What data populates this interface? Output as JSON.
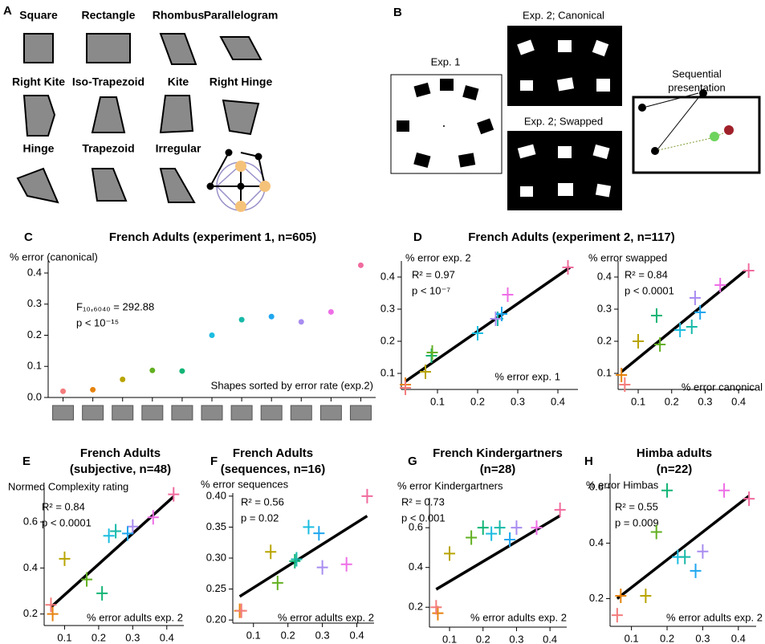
{
  "panel_a": {
    "label": "A",
    "shapes": [
      {
        "name": "Square",
        "color": "#e6830e"
      },
      {
        "name": "Rectangle",
        "color": "#f47c7c"
      },
      {
        "name": "Rhombus",
        "color": "#14b576"
      },
      {
        "name": "Parallelogram",
        "color": "#62b021"
      },
      {
        "name": "Right Kite",
        "color": "#1bbde0"
      },
      {
        "name": "Iso-Trapezoid",
        "color": "#b8a400"
      },
      {
        "name": "Kite",
        "color": "#17b9a8"
      },
      {
        "name": "Right Hinge",
        "color": "#a88cf0"
      },
      {
        "name": "Hinge",
        "color": "#1fa6ef"
      },
      {
        "name": "Trapezoid",
        "color": "#ee6ee6"
      },
      {
        "name": "Irregular",
        "color": "#f06b9e"
      }
    ]
  },
  "panel_b": {
    "label": "B",
    "exp1": "Exp. 1",
    "exp2_canonical": "Exp. 2; Canonical",
    "exp2_swapped": "Exp. 2; Swapped",
    "sequential": [
      "Sequential",
      "presentation"
    ]
  },
  "chart_data": [
    {
      "type": "dot",
      "label": "C",
      "title": [
        "French Adults (experiment 1, n=605)"
      ],
      "ylabel": "% error (canonical)",
      "xlabel": "Shapes sorted by error rate (exp.2)",
      "annotation": [
        "F₁₀,₆₀₄₀ = 292.88",
        "p < 10⁻¹⁵"
      ],
      "categories": [
        null,
        null,
        null,
        null,
        null,
        null,
        null,
        null,
        null,
        null,
        null
      ],
      "values": [
        0.02,
        0.025,
        0.058,
        0.087,
        0.085,
        0.2,
        0.25,
        0.26,
        0.243,
        0.275,
        0.425
      ],
      "colors": [
        "#f47c7c",
        "#e6830e",
        "#b8a400",
        "#62b021",
        "#14b576",
        "#1bbde0",
        "#17b9a8",
        "#1fa6ef",
        "#a88cf0",
        "#ee6ee6",
        "#f06b9e"
      ],
      "ylim": [
        0,
        0.44
      ],
      "yticks": [
        {
          "value": 0,
          "label": "0.0"
        },
        0.1,
        0.2,
        0.3,
        0.4
      ]
    },
    {
      "type": "scatter",
      "label": "D",
      "title": [
        "French Adults (experiment 2, n=117)"
      ],
      "ylabel": "% error exp. 2",
      "xlabel": "% error exp. 1",
      "annotation": [
        "R² = 0.97",
        "p < 10⁻⁷"
      ],
      "x": [
        0.02,
        0.02,
        0.085,
        0.087,
        0.2,
        0.07,
        0.25,
        0.245,
        0.26,
        0.275,
        0.425
      ],
      "y": [
        0.065,
        0.055,
        0.155,
        0.165,
        0.225,
        0.105,
        0.27,
        0.27,
        0.285,
        0.345,
        0.43
      ],
      "colors": [
        "#e6830e",
        "#f47c7c",
        "#14b576",
        "#62b021",
        "#1bbde0",
        "#b8a400",
        "#17b9a8",
        "#a88cf0",
        "#1fa6ef",
        "#ee6ee6",
        "#f06b9e"
      ],
      "fit": {
        "x": [
          0.02,
          0.43
        ],
        "y": [
          0.075,
          0.43
        ]
      },
      "xlim": [
        0.01,
        0.45
      ],
      "ylim": [
        0.05,
        0.45
      ],
      "xticks": [
        0.1,
        0.2,
        0.3,
        0.4
      ],
      "yticks": [
        0.1,
        0.2,
        0.3,
        0.4
      ]
    },
    {
      "type": "scatter",
      "ylabel": "% error swapped",
      "xlabel": "% error canonical",
      "annotation": [
        "R² = 0.84",
        "p < 0.0001"
      ],
      "x": [
        0.05,
        0.06,
        0.155,
        0.165,
        0.225,
        0.1,
        0.26,
        0.27,
        0.285,
        0.345,
        0.43
      ],
      "y": [
        0.095,
        0.065,
        0.28,
        0.19,
        0.235,
        0.2,
        0.245,
        0.335,
        0.29,
        0.375,
        0.42
      ],
      "colors": [
        "#e6830e",
        "#f47c7c",
        "#14b576",
        "#62b021",
        "#1bbde0",
        "#b8a400",
        "#17b9a8",
        "#a88cf0",
        "#1fa6ef",
        "#ee6ee6",
        "#f06b9e"
      ],
      "fit": {
        "x": [
          0.05,
          0.42
        ],
        "y": [
          0.105,
          0.42
        ]
      },
      "xlim": [
        0.04,
        0.45
      ],
      "ylim": [
        0.05,
        0.45
      ],
      "xticks": [
        0.1,
        0.2,
        0.3,
        0.4
      ],
      "yticks": [
        0.1,
        0.2,
        0.3,
        0.4
      ]
    },
    {
      "type": "scatter",
      "label": "E",
      "title": [
        "French Adults",
        "(subjective, n=48)"
      ],
      "ylabel": "Normed Complexity rating",
      "xlabel": "% error adults exp. 2",
      "annotation": [
        "R² = 0.84",
        "p < 0.0001"
      ],
      "x": [
        0.065,
        0.06,
        0.21,
        0.165,
        0.23,
        0.1,
        0.25,
        0.3,
        0.285,
        0.36,
        0.42
      ],
      "y": [
        0.2,
        0.24,
        0.29,
        0.35,
        0.54,
        0.44,
        0.56,
        0.58,
        0.55,
        0.62,
        0.72
      ],
      "colors": [
        "#e6830e",
        "#f47c7c",
        "#14b576",
        "#62b021",
        "#1bbde0",
        "#b8a400",
        "#17b9a8",
        "#a88cf0",
        "#1fa6ef",
        "#ee6ee6",
        "#f06b9e"
      ],
      "fit": {
        "x": [
          0.06,
          0.42
        ],
        "y": [
          0.23,
          0.71
        ]
      },
      "xlim": [
        0.04,
        0.45
      ],
      "ylim": [
        0.15,
        0.75
      ],
      "xticks": [
        0.1,
        0.2,
        0.3,
        0.4
      ],
      "yticks": [
        0.2,
        0.4,
        0.6
      ]
    },
    {
      "type": "scatter",
      "label": "F",
      "title": [
        "French Adults",
        "(sequences, n=16)"
      ],
      "ylabel": "% error sequences",
      "xlabel": "% error adults exp. 2",
      "annotation": [
        "R² = 0.56",
        "p = 0.02"
      ],
      "x": [
        0.06,
        0.065,
        0.22,
        0.17,
        0.26,
        0.15,
        0.225,
        0.3,
        0.29,
        0.37,
        0.43
      ],
      "y": [
        0.215,
        0.215,
        0.295,
        0.26,
        0.35,
        0.31,
        0.298,
        0.285,
        0.34,
        0.29,
        0.4
      ],
      "colors": [
        "#e6830e",
        "#f47c7c",
        "#14b576",
        "#62b021",
        "#1bbde0",
        "#b8a400",
        "#17b9a8",
        "#a88cf0",
        "#1fa6ef",
        "#ee6ee6",
        "#f06b9e"
      ],
      "fit": {
        "x": [
          0.06,
          0.43
        ],
        "y": [
          0.238,
          0.368
        ]
      },
      "xlim": [
        0.04,
        0.45
      ],
      "ylim": [
        0.195,
        0.405
      ],
      "xticks": [
        0.1,
        0.2,
        0.3,
        0.4
      ],
      "yticks": [
        {
          "value": 0.2,
          "label": "0.20"
        },
        0.25,
        {
          "value": 0.3,
          "label": "0.30"
        },
        0.35,
        {
          "value": 0.4,
          "label": "0.40"
        }
      ]
    },
    {
      "type": "scatter",
      "label": "G",
      "title": [
        "French Kindergartners",
        "(n=28)"
      ],
      "ylabel": "% error Kindergartners",
      "xlabel": "% error adults exp. 2",
      "annotation": [
        "R² = 0.73",
        "p < 0.001"
      ],
      "x": [
        0.065,
        0.06,
        0.2,
        0.165,
        0.225,
        0.1,
        0.25,
        0.3,
        0.28,
        0.36,
        0.43
      ],
      "y": [
        0.17,
        0.2,
        0.6,
        0.55,
        0.57,
        0.47,
        0.6,
        0.6,
        0.54,
        0.6,
        0.69
      ],
      "colors": [
        "#e6830e",
        "#f47c7c",
        "#14b576",
        "#62b021",
        "#1bbde0",
        "#b8a400",
        "#17b9a8",
        "#a88cf0",
        "#1fa6ef",
        "#ee6ee6",
        "#f06b9e"
      ],
      "fit": {
        "x": [
          0.06,
          0.43
        ],
        "y": [
          0.29,
          0.66
        ]
      },
      "xlim": [
        0.04,
        0.45
      ],
      "ylim": [
        0.1,
        0.75
      ],
      "xticks": [
        0.1,
        0.2,
        0.3,
        0.4
      ],
      "yticks": [
        0.2,
        0.4,
        0.6
      ]
    },
    {
      "type": "scatter",
      "label": "H",
      "title": [
        "Himba adults",
        "(n=22)"
      ],
      "ylabel": "% error Himbas",
      "xlabel": "% error adults exp. 2",
      "annotation": [
        "R² = 0.55",
        "p = 0.009"
      ],
      "x": [
        0.07,
        0.06,
        0.2,
        0.17,
        0.23,
        0.14,
        0.25,
        0.3,
        0.28,
        0.36,
        0.43
      ],
      "y": [
        0.21,
        0.14,
        0.59,
        0.44,
        0.35,
        0.21,
        0.35,
        0.37,
        0.3,
        0.59,
        0.56
      ],
      "colors": [
        "#e6830e",
        "#f47c7c",
        "#14b576",
        "#62b021",
        "#1bbde0",
        "#b8a400",
        "#17b9a8",
        "#a88cf0",
        "#1fa6ef",
        "#ee6ee6",
        "#f06b9e"
      ],
      "fit": {
        "x": [
          0.06,
          0.43
        ],
        "y": [
          0.2,
          0.57
        ]
      },
      "xlim": [
        0.04,
        0.45
      ],
      "ylim": [
        0.1,
        0.65
      ],
      "xticks": [
        0.1,
        0.2,
        0.3,
        0.4
      ],
      "yticks": [
        0.2,
        0.4,
        0.6
      ]
    }
  ]
}
